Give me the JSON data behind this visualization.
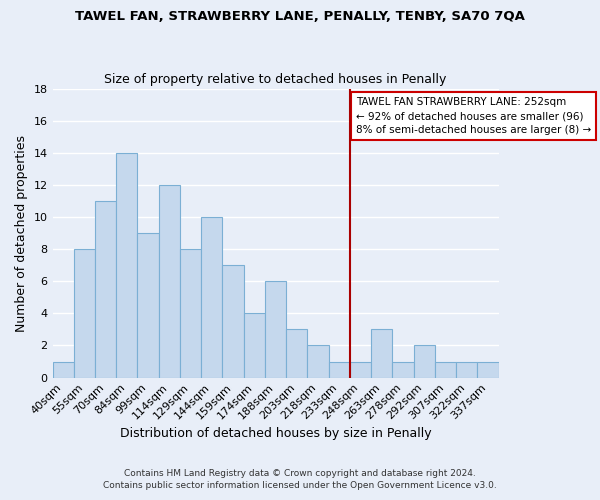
{
  "title": "TAWEL FAN, STRAWBERRY LANE, PENALLY, TENBY, SA70 7QA",
  "subtitle": "Size of property relative to detached houses in Penally",
  "xlabel": "Distribution of detached houses by size in Penally",
  "ylabel": "Number of detached properties",
  "footer_line1": "Contains HM Land Registry data © Crown copyright and database right 2024.",
  "footer_line2": "Contains public sector information licensed under the Open Government Licence v3.0.",
  "bar_labels": [
    "40sqm",
    "55sqm",
    "70sqm",
    "84sqm",
    "99sqm",
    "114sqm",
    "129sqm",
    "144sqm",
    "159sqm",
    "174sqm",
    "188sqm",
    "203sqm",
    "218sqm",
    "233sqm",
    "248sqm",
    "263sqm",
    "278sqm",
    "292sqm",
    "307sqm",
    "322sqm",
    "337sqm"
  ],
  "bar_values": [
    1,
    8,
    11,
    14,
    9,
    12,
    8,
    10,
    7,
    4,
    6,
    3,
    2,
    1,
    1,
    3,
    1,
    2,
    1,
    1,
    1
  ],
  "bar_color": "#c5d8ed",
  "bar_edge_color": "#7bafd4",
  "ylim": [
    0,
    18
  ],
  "yticks": [
    0,
    2,
    4,
    6,
    8,
    10,
    12,
    14,
    16,
    18
  ],
  "ref_line_index": 14,
  "ref_line_color": "#aa0000",
  "annotation_title": "TAWEL FAN STRAWBERRY LANE: 252sqm",
  "annotation_line1": "← 92% of detached houses are smaller (96)",
  "annotation_line2": "8% of semi-detached houses are larger (8) →",
  "annotation_box_color": "#ffffff",
  "annotation_border_color": "#cc0000",
  "background_color": "#e8eef8",
  "plot_bg_color": "#e8eef8",
  "grid_color": "#ffffff"
}
